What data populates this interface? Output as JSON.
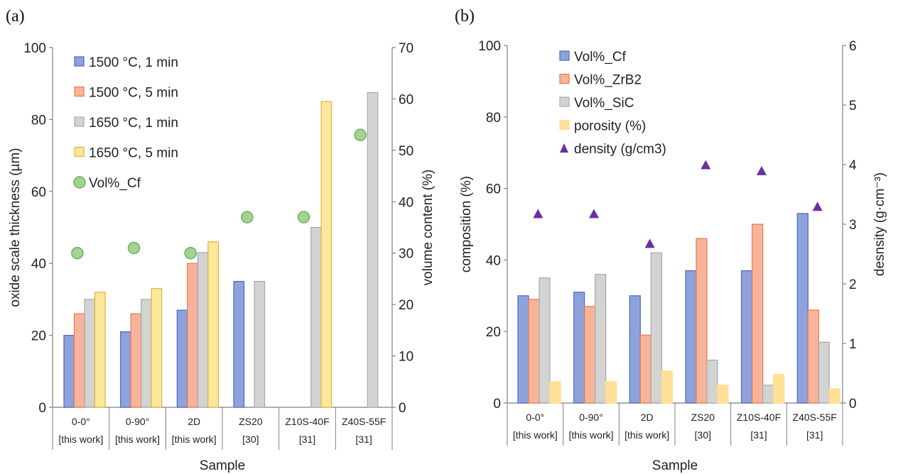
{
  "panels": {
    "a_label": "(a)",
    "b_label": "(b)"
  },
  "chart_data": [
    {
      "type": "bar",
      "panel": "(a)",
      "categories": [
        "0-0°",
        "0-90°",
        "2D",
        "ZS20",
        "Z10S-40F",
        "Z40S-55F"
      ],
      "category_refs": [
        "[this work]",
        "[this work]",
        "[this work]",
        "[30]",
        "[31]",
        "[31]"
      ],
      "xlabel": "Sample",
      "ylabel": "oxide scale thickness (µm)",
      "y2label": "volume content (%)",
      "ylim": [
        0,
        100
      ],
      "y2lim": [
        0,
        70
      ],
      "yticks": [
        0,
        20,
        40,
        60,
        80,
        100
      ],
      "y2ticks": [
        0,
        10,
        20,
        30,
        40,
        50,
        60,
        70
      ],
      "legend_position": "top-left",
      "series": [
        {
          "name": "1500 °C, 1 min",
          "kind": "bar",
          "axis": "left",
          "color": "#8ea3db",
          "edge": "#4a68c4",
          "values": [
            20,
            21,
            27,
            35,
            null,
            null
          ]
        },
        {
          "name": "1500 °C, 5 min",
          "kind": "bar",
          "axis": "left",
          "color": "#f7b49a",
          "edge": "#e9784f",
          "values": [
            26,
            26,
            40,
            null,
            null,
            null
          ]
        },
        {
          "name": "1650 °C, 1 min",
          "kind": "bar",
          "axis": "left",
          "color": "#d3d3d3",
          "edge": "#a8a8a8",
          "values": [
            30,
            30,
            43,
            35,
            50,
            87.5
          ]
        },
        {
          "name": "1650 °C, 5 min",
          "kind": "bar",
          "axis": "left",
          "color": "#fde79a",
          "edge": "#d9b63a",
          "values": [
            32,
            33,
            46,
            null,
            85,
            null
          ]
        },
        {
          "name": "Vol%_Cf",
          "kind": "point",
          "axis": "right",
          "color": "#a3d394",
          "edge": "#6fb05d",
          "values": [
            30,
            31,
            30,
            37,
            37,
            53
          ]
        }
      ]
    },
    {
      "type": "bar",
      "panel": "(b)",
      "categories": [
        "0-0°",
        "0-90°",
        "2D",
        "ZS20",
        "Z10S-40F",
        "Z40S-55F"
      ],
      "category_refs": [
        "[this work]",
        "[this work]",
        "[this work]",
        "[30]",
        "[31]",
        "[31]"
      ],
      "xlabel": "Sample",
      "ylabel": "composition (%)",
      "y2label": "desnsity (g·cm⁻³)",
      "ylim": [
        0,
        100
      ],
      "y2lim": [
        0,
        6
      ],
      "yticks": [
        0,
        20,
        40,
        60,
        80,
        100
      ],
      "y2ticks": [
        0,
        1,
        2,
        3,
        4,
        5,
        6
      ],
      "legend_position": "top-left",
      "series": [
        {
          "name": "Vol%_Cf",
          "kind": "bar",
          "axis": "left",
          "color": "#8ea3db",
          "edge": "#4a68c4",
          "values": [
            30,
            31,
            30,
            37,
            37,
            53
          ]
        },
        {
          "name": "Vol%_ZrB2",
          "kind": "bar",
          "axis": "left",
          "color": "#f7b49a",
          "edge": "#e9784f",
          "values": [
            29,
            27,
            19,
            46,
            50,
            26
          ]
        },
        {
          "name": "Vol%_SiC",
          "kind": "bar",
          "axis": "left",
          "color": "#d3d3d3",
          "edge": "#a8a8a8",
          "values": [
            35,
            36,
            42,
            12,
            5,
            17
          ]
        },
        {
          "name": "porosity (%)",
          "kind": "bar",
          "axis": "left",
          "color": "#ffdf94",
          "edge": "#ffdf94",
          "values": [
            6,
            6,
            9,
            5,
            8,
            4
          ]
        },
        {
          "name": "density (g/cm3)",
          "kind": "triangle",
          "axis": "right",
          "color": "#6a2fa3",
          "edge": "#6a2fa3",
          "values": [
            3.18,
            3.18,
            2.68,
            4.0,
            3.9,
            3.3
          ]
        }
      ]
    }
  ]
}
